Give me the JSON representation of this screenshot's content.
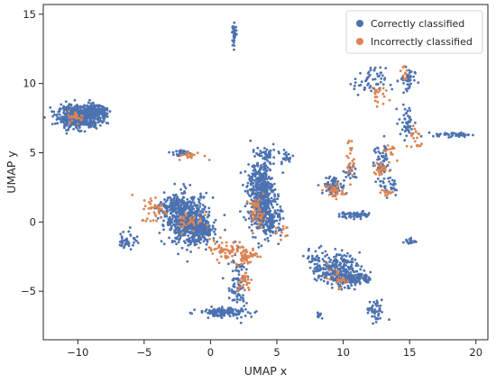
{
  "chart_data": {
    "type": "scatter",
    "title": "",
    "xlabel": "UMAP x",
    "ylabel": "UMAP y",
    "xlim": [
      -12.6,
      20.9
    ],
    "ylim": [
      -8.5,
      15.7
    ],
    "xticks": [
      -10,
      -5,
      0,
      5,
      10,
      15,
      20
    ],
    "yticks": [
      -5,
      0,
      5,
      10,
      15
    ],
    "x_tick_labels": [
      "−10",
      "−5",
      "0",
      "5",
      "10",
      "15",
      "20"
    ],
    "y_tick_labels": [
      "−5",
      "0",
      "5",
      "10",
      "15"
    ],
    "grid": false,
    "legend_position": "top-right",
    "series": [
      {
        "name": "Correctly classified",
        "color": "#4c72b0",
        "clusters": [
          {
            "cx": -9.9,
            "cy": 7.6,
            "sx": 0.8,
            "sy": 0.4,
            "n": 600
          },
          {
            "cx": -8.6,
            "cy": 7.9,
            "sx": 0.4,
            "sy": 0.25,
            "n": 120
          },
          {
            "cx": 1.8,
            "cy": 13.6,
            "sx": 0.08,
            "sy": 0.35,
            "n": 40
          },
          {
            "cx": -1.8,
            "cy": 0.2,
            "sx": 0.8,
            "sy": 0.9,
            "n": 520
          },
          {
            "cx": -0.7,
            "cy": -0.6,
            "sx": 0.5,
            "sy": 0.4,
            "n": 200
          },
          {
            "cx": -2.6,
            "cy": 1.3,
            "sx": 0.4,
            "sy": 0.3,
            "n": 60
          },
          {
            "cx": -2.2,
            "cy": 5.0,
            "sx": 0.3,
            "sy": 0.12,
            "n": 30
          },
          {
            "cx": -6.2,
            "cy": -1.3,
            "sx": 0.35,
            "sy": 0.35,
            "n": 45
          },
          {
            "cx": -3.5,
            "cy": 1.0,
            "sx": 0.4,
            "sy": 0.3,
            "n": 35
          },
          {
            "cx": 3.8,
            "cy": 2.0,
            "sx": 0.5,
            "sy": 1.3,
            "n": 500
          },
          {
            "cx": 4.6,
            "cy": 0.1,
            "sx": 0.35,
            "sy": 0.6,
            "n": 120
          },
          {
            "cx": 4.3,
            "cy": 4.8,
            "sx": 0.3,
            "sy": 0.3,
            "n": 30
          },
          {
            "cx": 2.0,
            "cy": -4.5,
            "sx": 0.35,
            "sy": 1.2,
            "n": 90
          },
          {
            "cx": 1.0,
            "cy": -6.5,
            "sx": 0.9,
            "sy": 0.15,
            "n": 150
          },
          {
            "cx": 9.6,
            "cy": -3.5,
            "sx": 0.8,
            "sy": 0.6,
            "n": 250
          },
          {
            "cx": 10.9,
            "cy": -4.1,
            "sx": 0.6,
            "sy": 0.2,
            "n": 120
          },
          {
            "cx": 8.0,
            "cy": -2.8,
            "sx": 0.4,
            "sy": 0.5,
            "n": 40
          },
          {
            "cx": 9.3,
            "cy": 2.6,
            "sx": 0.4,
            "sy": 0.3,
            "n": 80
          },
          {
            "cx": 10.5,
            "cy": 3.6,
            "sx": 0.25,
            "sy": 0.3,
            "n": 25
          },
          {
            "cx": 11.0,
            "cy": 0.5,
            "sx": 0.6,
            "sy": 0.12,
            "n": 60
          },
          {
            "cx": 12.4,
            "cy": -6.5,
            "sx": 0.35,
            "sy": 0.4,
            "n": 45
          },
          {
            "cx": 12.9,
            "cy": 4.5,
            "sx": 0.3,
            "sy": 0.7,
            "n": 50
          },
          {
            "cx": 14.8,
            "cy": 10.2,
            "sx": 0.3,
            "sy": 0.5,
            "n": 45
          },
          {
            "cx": 12.0,
            "cy": 10.1,
            "sx": 0.6,
            "sy": 0.5,
            "n": 55
          },
          {
            "cx": 14.8,
            "cy": 7.2,
            "sx": 0.3,
            "sy": 0.6,
            "n": 45
          },
          {
            "cx": 18.2,
            "cy": 6.3,
            "sx": 0.7,
            "sy": 0.08,
            "n": 50
          },
          {
            "cx": 15.0,
            "cy": -1.4,
            "sx": 0.25,
            "sy": 0.12,
            "n": 20
          },
          {
            "cx": 13.5,
            "cy": 2.7,
            "sx": 0.4,
            "sy": 0.4,
            "n": 30
          },
          {
            "cx": 8.2,
            "cy": -6.7,
            "sx": 0.15,
            "sy": 0.15,
            "n": 10
          },
          {
            "cx": 5.7,
            "cy": 4.7,
            "sx": 0.3,
            "sy": 0.3,
            "n": 20
          }
        ]
      },
      {
        "name": "Incorrectly classified",
        "color": "#dd8452",
        "clusters": [
          {
            "cx": -10.1,
            "cy": 7.6,
            "sx": 0.3,
            "sy": 0.2,
            "n": 25
          },
          {
            "cx": -1.5,
            "cy": 4.8,
            "sx": 0.5,
            "sy": 0.15,
            "n": 20
          },
          {
            "cx": -4.2,
            "cy": 0.9,
            "sx": 0.5,
            "sy": 0.5,
            "n": 40
          },
          {
            "cx": -1.6,
            "cy": 0.1,
            "sx": 0.5,
            "sy": 0.4,
            "n": 30
          },
          {
            "cx": 1.2,
            "cy": -2.0,
            "sx": 0.9,
            "sy": 0.35,
            "n": 70
          },
          {
            "cx": 2.7,
            "cy": -2.5,
            "sx": 0.4,
            "sy": 0.3,
            "n": 45
          },
          {
            "cx": 3.5,
            "cy": 0.7,
            "sx": 0.3,
            "sy": 0.5,
            "n": 45
          },
          {
            "cx": 2.6,
            "cy": -4.3,
            "sx": 0.25,
            "sy": 0.4,
            "n": 25
          },
          {
            "cx": 9.3,
            "cy": 2.2,
            "sx": 0.35,
            "sy": 0.3,
            "n": 35
          },
          {
            "cx": 10.5,
            "cy": 4.5,
            "sx": 0.15,
            "sy": 0.8,
            "n": 25
          },
          {
            "cx": 9.6,
            "cy": -4.1,
            "sx": 0.4,
            "sy": 0.3,
            "n": 25
          },
          {
            "cx": 12.8,
            "cy": 3.8,
            "sx": 0.25,
            "sy": 0.25,
            "n": 25
          },
          {
            "cx": 13.3,
            "cy": 2.1,
            "sx": 0.25,
            "sy": 0.15,
            "n": 15
          },
          {
            "cx": 13.5,
            "cy": 5.2,
            "sx": 0.25,
            "sy": 0.3,
            "n": 15
          },
          {
            "cx": 12.5,
            "cy": 9.2,
            "sx": 0.3,
            "sy": 0.4,
            "n": 20
          },
          {
            "cx": 15.4,
            "cy": 6.0,
            "sx": 0.3,
            "sy": 0.6,
            "n": 20
          },
          {
            "cx": 14.6,
            "cy": 10.8,
            "sx": 0.2,
            "sy": 0.4,
            "n": 10
          },
          {
            "cx": 5.4,
            "cy": -0.6,
            "sx": 0.3,
            "sy": 0.3,
            "n": 10
          }
        ]
      }
    ]
  }
}
